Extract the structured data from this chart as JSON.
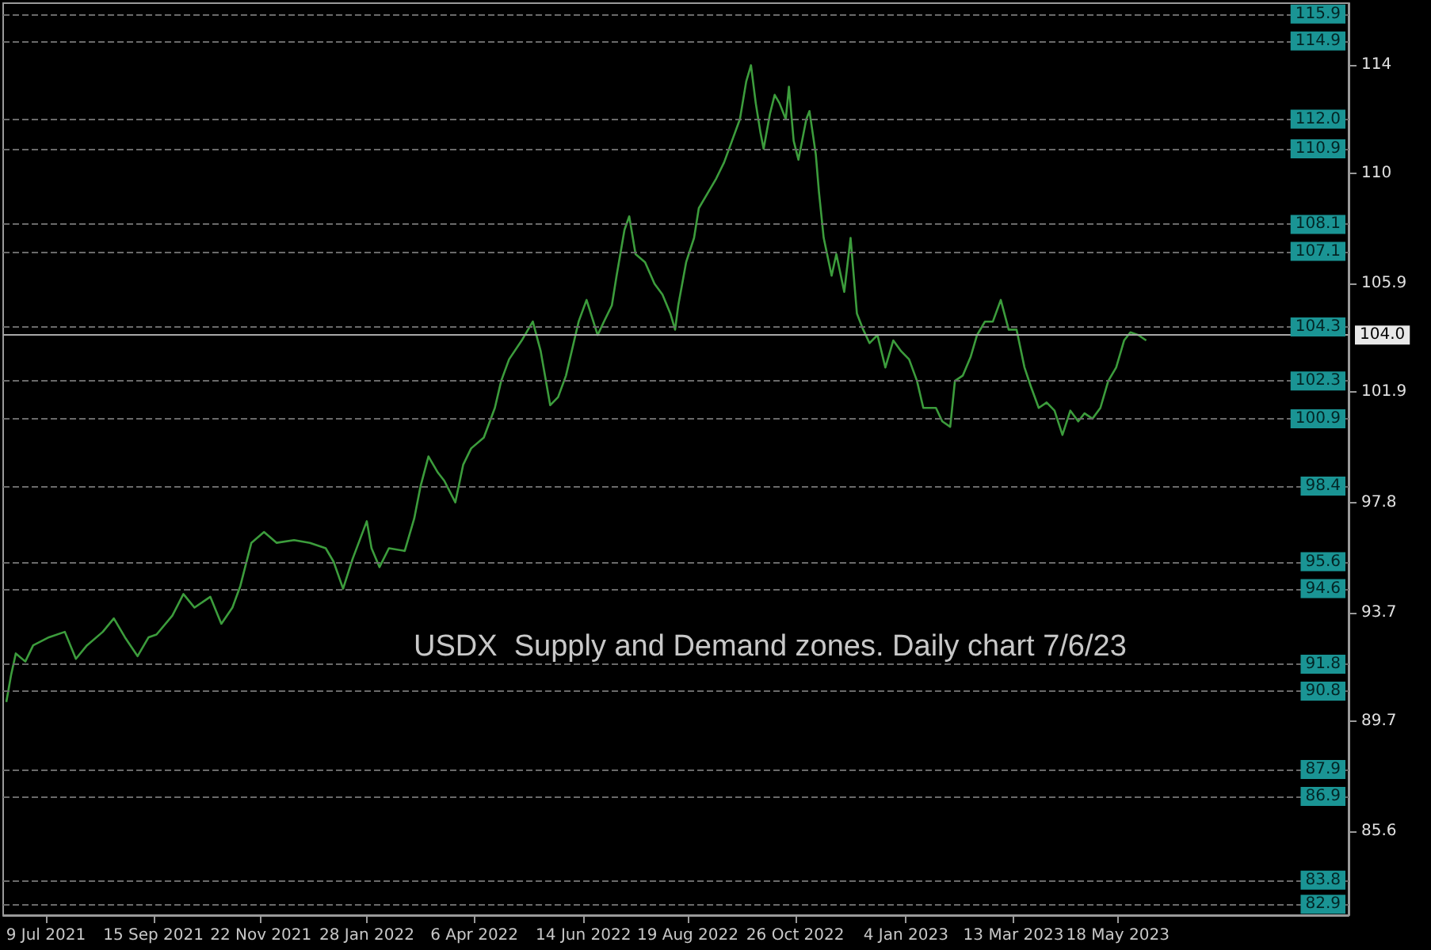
{
  "chart_data": {
    "type": "line",
    "title": "USDX  Supply and Demand zones. Daily chart 7/6/23",
    "xlim": [
      "2021-06-12",
      "2023-10-11"
    ],
    "xticks": [
      {
        "value": "2021-07-09",
        "label": "9 Jul 2021"
      },
      {
        "value": "2021-09-15",
        "label": "15 Sep 2021"
      },
      {
        "value": "2021-11-22",
        "label": "22 Nov 2021"
      },
      {
        "value": "2022-01-28",
        "label": "28 Jan 2022"
      },
      {
        "value": "2022-04-06",
        "label": "6 Apr 2022"
      },
      {
        "value": "2022-06-14",
        "label": "14 Jun 2022"
      },
      {
        "value": "2022-08-19",
        "label": "19 Aug 2022"
      },
      {
        "value": "2022-10-26",
        "label": "26 Oct 2022"
      },
      {
        "value": "2023-01-04",
        "label": "4 Jan 2023"
      },
      {
        "value": "2023-03-13",
        "label": "13 Mar 2023"
      },
      {
        "value": "2023-05-18",
        "label": "18 May 2023"
      }
    ],
    "ylim": [
      82.5,
      116.3
    ],
    "yticks": [
      85.6,
      89.7,
      93.7,
      97.8,
      101.9,
      105.9,
      110.0,
      114.0
    ],
    "series": [
      {
        "color": "#3c9c3c",
        "x": [
          "2021-06-14",
          "2021-06-17",
          "2021-06-20",
          "2021-06-26",
          "2021-07-01",
          "2021-07-11",
          "2021-07-21",
          "2021-07-28",
          "2021-08-04",
          "2021-08-14",
          "2021-08-21",
          "2021-08-28",
          "2021-09-05",
          "2021-09-12",
          "2021-09-17",
          "2021-09-27",
          "2021-10-04",
          "2021-10-11",
          "2021-10-21",
          "2021-10-28",
          "2021-11-04",
          "2021-11-09",
          "2021-11-16",
          "2021-11-24",
          "2021-12-02",
          "2021-12-13",
          "2021-12-23",
          "2022-01-02",
          "2022-01-07",
          "2022-01-13",
          "2022-01-19",
          "2022-01-28",
          "2022-01-31",
          "2022-02-05",
          "2022-02-11",
          "2022-02-21",
          "2022-02-27",
          "2022-03-03",
          "2022-03-08",
          "2022-03-14",
          "2022-03-18",
          "2022-03-25",
          "2022-03-30",
          "2022-04-04",
          "2022-04-12",
          "2022-04-19",
          "2022-04-23",
          "2022-04-28",
          "2022-05-06",
          "2022-05-13",
          "2022-05-18",
          "2022-05-24",
          "2022-05-29",
          "2022-06-03",
          "2022-06-11",
          "2022-06-16",
          "2022-06-23",
          "2022-06-27",
          "2022-07-02",
          "2022-07-05",
          "2022-07-10",
          "2022-07-13",
          "2022-07-17",
          "2022-07-23",
          "2022-07-29",
          "2022-08-03",
          "2022-08-08",
          "2022-08-11",
          "2022-08-13",
          "2022-08-18",
          "2022-08-23",
          "2022-08-26",
          "2022-09-01",
          "2022-09-06",
          "2022-09-11",
          "2022-09-16",
          "2022-09-21",
          "2022-09-25",
          "2022-09-28",
          "2022-10-01",
          "2022-10-04",
          "2022-10-06",
          "2022-10-10",
          "2022-10-13",
          "2022-10-16",
          "2022-10-20",
          "2022-10-22",
          "2022-10-25",
          "2022-10-28",
          "2022-11-02",
          "2022-11-04",
          "2022-11-08",
          "2022-11-10",
          "2022-11-13",
          "2022-11-18",
          "2022-11-21",
          "2022-11-26",
          "2022-11-30",
          "2022-12-04",
          "2022-12-08",
          "2022-12-12",
          "2022-12-17",
          "2022-12-22",
          "2022-12-27",
          "2023-01-01",
          "2023-01-06",
          "2023-01-11",
          "2023-01-15",
          "2023-01-23",
          "2023-01-27",
          "2023-02-01",
          "2023-02-04",
          "2023-02-09",
          "2023-02-14",
          "2023-02-18",
          "2023-02-23",
          "2023-02-28",
          "2023-03-05",
          "2023-03-10",
          "2023-03-15",
          "2023-03-20",
          "2023-03-24",
          "2023-03-29",
          "2023-04-03",
          "2023-04-08",
          "2023-04-13",
          "2023-04-18",
          "2023-04-23",
          "2023-04-27",
          "2023-05-02",
          "2023-05-07",
          "2023-05-12",
          "2023-05-17",
          "2023-05-22",
          "2023-05-26",
          "2023-05-31",
          "2023-06-05"
        ],
        "values": [
          90.4,
          91.4,
          92.2,
          91.9,
          92.5,
          92.8,
          93.0,
          92.0,
          92.5,
          93.0,
          93.5,
          92.8,
          92.1,
          92.8,
          92.9,
          93.6,
          94.4,
          93.9,
          94.3,
          93.3,
          93.9,
          94.7,
          96.3,
          96.7,
          96.3,
          96.4,
          96.3,
          96.1,
          95.6,
          94.6,
          95.7,
          97.1,
          96.1,
          95.4,
          96.1,
          96.0,
          97.2,
          98.4,
          99.5,
          98.9,
          98.6,
          97.8,
          99.2,
          99.8,
          100.2,
          101.3,
          102.3,
          103.1,
          103.8,
          104.5,
          103.4,
          101.4,
          101.7,
          102.5,
          104.5,
          105.3,
          104.0,
          104.5,
          105.1,
          106.2,
          107.9,
          108.4,
          107.0,
          106.7,
          105.9,
          105.5,
          104.8,
          104.2,
          105.1,
          106.7,
          107.6,
          108.7,
          109.3,
          109.8,
          110.4,
          111.2,
          112.0,
          113.4,
          114.0,
          112.6,
          111.5,
          110.9,
          112.2,
          112.9,
          112.6,
          112.0,
          113.2,
          111.2,
          110.5,
          112.0,
          112.3,
          110.7,
          109.3,
          107.6,
          106.2,
          107.0,
          105.6,
          107.6,
          104.8,
          104.2,
          103.7,
          104.0,
          102.8,
          103.8,
          103.4,
          103.1,
          102.3,
          101.3,
          101.3,
          100.8,
          100.6,
          102.3,
          102.5,
          103.2,
          104.0,
          104.5,
          104.5,
          105.3,
          104.2,
          104.2,
          102.8,
          102.1,
          101.3,
          101.5,
          101.2,
          100.3,
          101.2,
          100.8,
          101.1,
          100.9,
          101.3,
          102.3,
          102.8,
          103.8,
          104.1,
          104.0,
          103.8
        ]
      }
    ],
    "ref_lines": [
      {
        "axis": "y",
        "value": 115.9,
        "label": "115.9",
        "color": "#6a6a6a",
        "line_style": "dashed"
      },
      {
        "axis": "y",
        "value": 114.9,
        "label": "114.9",
        "color": "#6a6a6a",
        "line_style": "dashed"
      },
      {
        "axis": "y",
        "value": 112.0,
        "label": "112.0",
        "color": "#6a6a6a",
        "line_style": "dashed"
      },
      {
        "axis": "y",
        "value": 110.9,
        "label": "110.9",
        "color": "#6a6a6a",
        "line_style": "dashed"
      },
      {
        "axis": "y",
        "value": 108.1,
        "label": "108.1",
        "color": "#6a6a6a",
        "line_style": "dashed"
      },
      {
        "axis": "y",
        "value": 107.1,
        "label": "107.1",
        "color": "#6a6a6a",
        "line_style": "dashed"
      },
      {
        "axis": "y",
        "value": 104.3,
        "label": "104.3",
        "color": "#6a6a6a",
        "line_style": "dashed"
      },
      {
        "axis": "y",
        "value": 104.0,
        "label": "104.0",
        "color": "#a8a8a8",
        "line_style": "solid"
      },
      {
        "axis": "y",
        "value": 102.3,
        "label": "102.3",
        "color": "#6a6a6a",
        "line_style": "dashed"
      },
      {
        "axis": "y",
        "value": 100.9,
        "label": "100.9",
        "color": "#6a6a6a",
        "line_style": "dashed"
      },
      {
        "axis": "y",
        "value": 98.4,
        "label": "98.4",
        "color": "#6a6a6a",
        "line_style": "dashed"
      },
      {
        "axis": "y",
        "value": 95.6,
        "label": "95.6",
        "color": "#6a6a6a",
        "line_style": "dashed"
      },
      {
        "axis": "y",
        "value": 94.6,
        "label": "94.6",
        "color": "#6a6a6a",
        "line_style": "dashed"
      },
      {
        "axis": "y",
        "value": 91.8,
        "label": "91.8",
        "color": "#6a6a6a",
        "line_style": "dashed"
      },
      {
        "axis": "y",
        "value": 90.8,
        "label": "90.8",
        "color": "#6a6a6a",
        "line_style": "dashed"
      },
      {
        "axis": "y",
        "value": 87.9,
        "label": "87.9",
        "color": "#6a6a6a",
        "line_style": "dashed"
      },
      {
        "axis": "y",
        "value": 86.9,
        "label": "86.9",
        "color": "#6a6a6a",
        "line_style": "dashed"
      },
      {
        "axis": "y",
        "value": 83.8,
        "label": "83.8",
        "color": "#6a6a6a",
        "line_style": "dashed"
      },
      {
        "axis": "y",
        "value": 82.9,
        "label": "82.9",
        "color": "#6a6a6a",
        "line_style": "dashed"
      }
    ]
  }
}
